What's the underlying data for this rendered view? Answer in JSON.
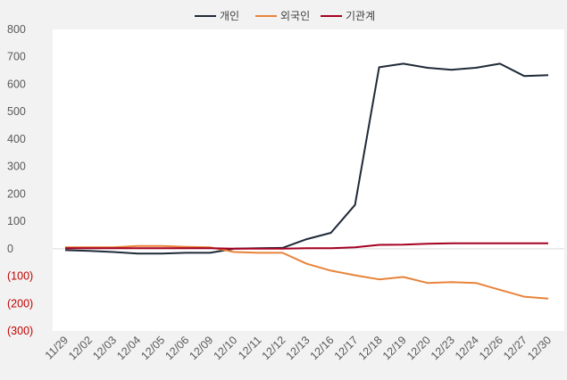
{
  "chart_data": {
    "type": "line",
    "categories": [
      "11/29",
      "12/02",
      "12/03",
      "12/04",
      "12/05",
      "12/06",
      "12/09",
      "12/10",
      "12/11",
      "12/12",
      "12/13",
      "12/16",
      "12/17",
      "12/18",
      "12/19",
      "12/20",
      "12/23",
      "12/24",
      "12/26",
      "12/27",
      "12/30"
    ],
    "series": [
      {
        "name": "개인",
        "color": "#1f2a38",
        "values": [
          -5,
          -8,
          -12,
          -18,
          -18,
          -15,
          -15,
          0,
          2,
          3,
          35,
          58,
          160,
          662,
          675,
          660,
          653,
          660,
          675,
          630,
          633
        ]
      },
      {
        "name": "외국인",
        "color": "#e8833a",
        "values": [
          5,
          5,
          5,
          10,
          10,
          7,
          5,
          -12,
          -15,
          -15,
          -55,
          -80,
          -97,
          -112,
          -103,
          -125,
          -122,
          -125,
          -150,
          -175,
          -182
        ]
      },
      {
        "name": "기관계",
        "color": "#a50021",
        "values": [
          2,
          2,
          2,
          2,
          2,
          2,
          2,
          0,
          0,
          0,
          2,
          2,
          5,
          14,
          15,
          18,
          20,
          20,
          20,
          20,
          20
        ]
      }
    ],
    "yTicks": [
      "800",
      "700",
      "600",
      "500",
      "400",
      "300",
      "200",
      "100",
      "0",
      "(100)",
      "(200)",
      "(300)"
    ],
    "ylim": [
      -300,
      800
    ],
    "title": "",
    "xlabel": "",
    "ylabel": "",
    "legend": "top-center",
    "grid": false
  }
}
